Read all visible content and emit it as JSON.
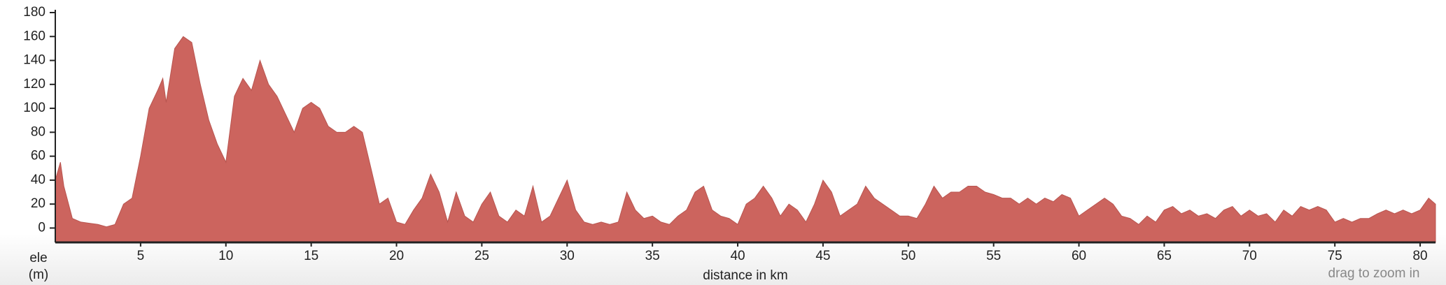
{
  "chart_data": {
    "type": "area",
    "xlabel": "distance in km",
    "ylabel_lines": [
      "ele",
      "(m)"
    ],
    "hint": "drag to zoom in",
    "color": "#cc645e",
    "xlim": [
      0,
      80.9
    ],
    "ylim": [
      -12,
      180
    ],
    "xticks": [
      5,
      10,
      15,
      20,
      25,
      30,
      35,
      40,
      45,
      50,
      55,
      60,
      65,
      70,
      75,
      80
    ],
    "yticks": [
      0,
      20,
      40,
      60,
      80,
      100,
      120,
      140,
      160,
      180
    ],
    "x": [
      0,
      0.3,
      0.5,
      1,
      1.5,
      2,
      2.5,
      3,
      3.5,
      4,
      4.5,
      5,
      5.5,
      6,
      6.3,
      6.5,
      7,
      7.5,
      8,
      8.5,
      9,
      9.5,
      10,
      10.5,
      11,
      11.5,
      12,
      12.5,
      13,
      13.5,
      14,
      14.5,
      15,
      15.5,
      16,
      16.5,
      17,
      17.5,
      18,
      18.5,
      19,
      19.5,
      20,
      20.5,
      21,
      21.5,
      22,
      22.5,
      23,
      23.5,
      24,
      24.5,
      25,
      25.5,
      26,
      26.5,
      27,
      27.5,
      28,
      28.5,
      29,
      29.5,
      30,
      30.5,
      31,
      31.5,
      32,
      32.5,
      33,
      33.5,
      34,
      34.5,
      35,
      35.5,
      36,
      36.5,
      37,
      37.5,
      38,
      38.5,
      39,
      39.5,
      40,
      40.5,
      41,
      41.5,
      42,
      42.5,
      43,
      43.5,
      44,
      44.5,
      45,
      45.5,
      46,
      46.5,
      47,
      47.5,
      48,
      48.5,
      49,
      49.5,
      50,
      50.5,
      51,
      51.5,
      52,
      52.5,
      53,
      53.5,
      54,
      54.5,
      55,
      55.5,
      56,
      56.5,
      57,
      57.5,
      58,
      58.5,
      59,
      59.5,
      60,
      60.5,
      61,
      61.5,
      62,
      62.5,
      63,
      63.5,
      64,
      64.5,
      65,
      65.5,
      66,
      66.5,
      67,
      67.5,
      68,
      68.5,
      69,
      69.5,
      70,
      70.5,
      71,
      71.5,
      72,
      72.5,
      73,
      73.5,
      74,
      74.5,
      75,
      75.5,
      76,
      76.5,
      77,
      77.5,
      78,
      78.5,
      79,
      79.5,
      80,
      80.5,
      80.9
    ],
    "values": [
      40,
      55,
      35,
      8,
      5,
      4,
      3,
      1,
      3,
      20,
      25,
      60,
      100,
      115,
      125,
      105,
      150,
      160,
      155,
      120,
      90,
      70,
      55,
      110,
      125,
      115,
      140,
      120,
      110,
      95,
      80,
      100,
      105,
      100,
      85,
      80,
      80,
      85,
      80,
      50,
      20,
      25,
      5,
      3,
      15,
      25,
      45,
      30,
      5,
      30,
      10,
      5,
      20,
      30,
      10,
      5,
      15,
      10,
      35,
      5,
      10,
      25,
      40,
      15,
      5,
      3,
      5,
      3,
      5,
      30,
      15,
      8,
      10,
      5,
      3,
      10,
      15,
      30,
      35,
      15,
      10,
      8,
      3,
      20,
      25,
      35,
      25,
      10,
      20,
      15,
      5,
      20,
      40,
      30,
      10,
      15,
      20,
      35,
      25,
      20,
      15,
      10,
      10,
      8,
      20,
      35,
      25,
      30,
      30,
      35,
      35,
      30,
      28,
      25,
      25,
      20,
      25,
      20,
      25,
      22,
      28,
      25,
      10,
      15,
      20,
      25,
      20,
      10,
      8,
      3,
      10,
      5,
      15,
      18,
      12,
      15,
      10,
      12,
      8,
      15,
      18,
      10,
      15,
      10,
      12,
      5,
      15,
      10,
      18,
      15,
      18,
      15,
      5,
      8,
      5,
      8,
      8,
      12,
      15,
      12,
      15,
      12,
      15,
      25,
      20
    ]
  }
}
